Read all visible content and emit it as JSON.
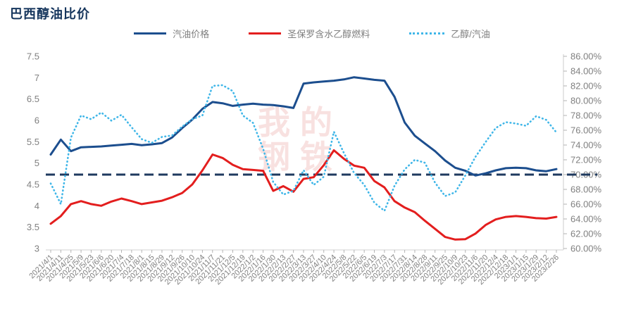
{
  "page": {
    "title": "巴西醇油比价"
  },
  "legend": [
    {
      "label": "汽油价格",
      "color": "#1c4e8e",
      "style": "solid"
    },
    {
      "label": "圣保罗含水乙醇燃料",
      "color": "#e31e1e",
      "style": "solid"
    },
    {
      "label": "乙醇/汽油",
      "color": "#3fb6e8",
      "style": "dotted"
    }
  ],
  "watermark": {
    "line1": "我的",
    "line2": "钢铁"
  },
  "colors": {
    "title": "#16365d",
    "gasoline_line": "#1c4e8e",
    "ethanol_line": "#e31e1e",
    "ratio_line": "#3fb6e8",
    "reference_line": "#1f3a5f",
    "axis_text": "#808080",
    "axis_line": "#d9d9d9",
    "tick": "#b3b3b3"
  },
  "chart_data": {
    "type": "line",
    "title": "巴西醇油比价",
    "grid": false,
    "legend_position": "top",
    "x_labels": [
      "2021/4/1",
      "2021/4/11",
      "2021/4/25",
      "2021/5/9",
      "2021/5/23",
      "2021/6/6",
      "2021/6/20",
      "2021/7/4",
      "2021/7/18",
      "2021/8/1",
      "2021/8/15",
      "2021/8/29",
      "2021/9/12",
      "2021/9/26",
      "2021/10/10",
      "2021/10/24",
      "2021/11/7",
      "2021/11/21",
      "2021/12/5",
      "2021/12/19",
      "2022/1/2",
      "2022/1/16",
      "2022/1/30",
      "2022/2/13",
      "2022/2/27",
      "2022/3/13",
      "2022/3/27",
      "2022/4/10",
      "2022/4/24",
      "2022/5/8",
      "2022/5/22",
      "2022/6/5",
      "2022/6/19",
      "2022/7/3",
      "2022/7/17",
      "2022/7/31",
      "2022/8/14",
      "2022/8/28",
      "2022/9/11",
      "2022/9/25",
      "2022/10/9",
      "2022/10/23",
      "2022/11/6",
      "2022/11/20",
      "2022/12/4",
      "2022/12/18",
      "2023/1/1",
      "2023/1/15",
      "2023/1/29",
      "2023/2/12",
      "2023/2/26"
    ],
    "series": [
      {
        "name": "汽油价格",
        "axis": "left",
        "color": "#1c4e8e",
        "style": "solid",
        "values": [
          5.2,
          5.55,
          5.28,
          5.37,
          5.38,
          5.39,
          5.41,
          5.43,
          5.45,
          5.42,
          5.44,
          5.47,
          5.6,
          5.82,
          6.02,
          6.27,
          6.43,
          6.4,
          6.34,
          6.37,
          6.39,
          6.37,
          6.36,
          6.33,
          6.29,
          6.86,
          6.89,
          6.91,
          6.93,
          6.96,
          7.01,
          6.98,
          6.95,
          6.93,
          6.55,
          5.95,
          5.64,
          5.46,
          5.28,
          5.06,
          4.89,
          4.82,
          4.71,
          4.76,
          4.83,
          4.88,
          4.89,
          4.88,
          4.83,
          4.81,
          4.86
        ]
      },
      {
        "name": "圣保罗含水乙醇燃料",
        "axis": "left",
        "color": "#e31e1e",
        "style": "solid",
        "values": [
          3.58,
          3.76,
          4.04,
          4.11,
          4.04,
          4.0,
          4.1,
          4.17,
          4.11,
          4.04,
          4.08,
          4.12,
          4.2,
          4.3,
          4.5,
          4.83,
          5.2,
          5.12,
          4.96,
          4.86,
          4.84,
          4.82,
          4.35,
          4.46,
          4.33,
          4.63,
          4.67,
          4.95,
          5.3,
          5.1,
          4.94,
          4.89,
          4.58,
          4.43,
          4.11,
          3.96,
          3.85,
          3.65,
          3.46,
          3.27,
          3.21,
          3.22,
          3.35,
          3.55,
          3.68,
          3.74,
          3.76,
          3.74,
          3.71,
          3.7,
          3.74
        ]
      },
      {
        "name": "乙醇/汽油",
        "axis": "right",
        "color": "#3fb6e8",
        "style": "dotted",
        "values": [
          68.8,
          66.0,
          75.0,
          78.0,
          77.5,
          78.4,
          77.3,
          78.1,
          76.4,
          74.8,
          74.3,
          75.1,
          75.3,
          76.5,
          77.5,
          78.0,
          82.0,
          82.1,
          81.3,
          78.0,
          77.0,
          73.5,
          69.0,
          67.3,
          67.8,
          70.6,
          68.6,
          69.7,
          75.8,
          72.9,
          70.2,
          68.6,
          66.2,
          65.1,
          68.5,
          70.7,
          72.0,
          71.6,
          68.9,
          67.1,
          67.6,
          69.9,
          72.4,
          74.4,
          76.3,
          77.1,
          76.9,
          76.6,
          77.9,
          77.4,
          75.7
        ]
      }
    ],
    "reference_line": {
      "value": 70,
      "axis": "right",
      "style": "dashed",
      "color": "#1f3a5f"
    },
    "left_axis": {
      "min": 3,
      "max": 7.5,
      "step": 0.5,
      "labels": [
        "7.5",
        "7",
        "6.5",
        "6",
        "5.5",
        "5",
        "4.5",
        "4",
        "3.5",
        "3"
      ]
    },
    "right_axis": {
      "min": 60,
      "max": 86,
      "step": 2,
      "labels": [
        "86.00%",
        "84.00%",
        "82.00%",
        "80.00%",
        "78.00%",
        "76.00%",
        "74.00%",
        "72.00%",
        "70.00%",
        "68.00%",
        "66.00%",
        "64.00%",
        "62.00%",
        "60.00%"
      ]
    }
  }
}
